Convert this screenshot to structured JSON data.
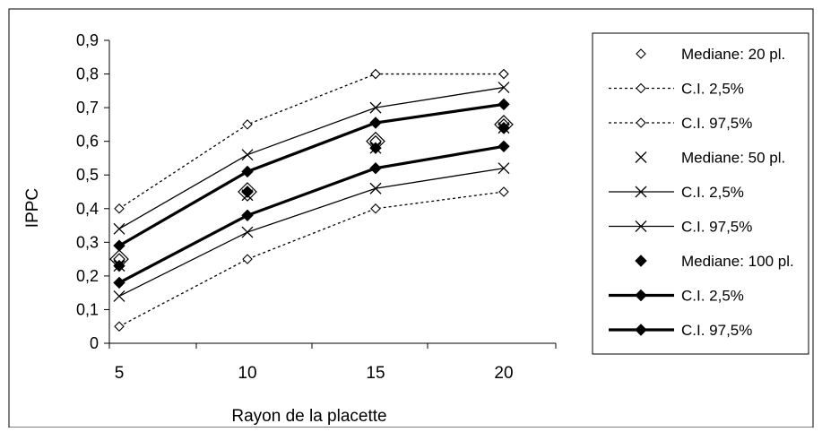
{
  "chart_data": {
    "type": "line",
    "title": "",
    "xlabel": "Rayon de la placette",
    "ylabel": "IPPC",
    "x": [
      5,
      10,
      15,
      20
    ],
    "xlim": [
      5,
      20
    ],
    "ylim": [
      0,
      0.9
    ],
    "xticks": [
      "5",
      "10",
      "15",
      "20"
    ],
    "yticks": [
      "0",
      "0,1",
      "0,2",
      "0,3",
      "0,4",
      "0,5",
      "0,6",
      "0,7",
      "0,8",
      "0,9"
    ],
    "grid": false,
    "legend_position": "right",
    "series": [
      {
        "name": "Mediane: 20 pl.",
        "values": [
          0.25,
          0.45,
          0.6,
          0.65
        ],
        "marker": "diamond-open-large",
        "line": "none"
      },
      {
        "name": "C.I. 2,5%",
        "values": [
          0.05,
          0.25,
          0.4,
          0.45
        ],
        "marker": "diamond-open",
        "line": "dotted"
      },
      {
        "name": "C.I. 97,5%",
        "values": [
          0.4,
          0.65,
          0.8,
          0.8
        ],
        "marker": "diamond-open",
        "line": "dotted"
      },
      {
        "name": "Mediane: 50 pl.",
        "values": [
          0.23,
          0.44,
          0.58,
          0.64
        ],
        "marker": "x",
        "line": "none"
      },
      {
        "name": "C.I. 2,5%",
        "values": [
          0.14,
          0.33,
          0.46,
          0.52
        ],
        "marker": "x",
        "line": "thin"
      },
      {
        "name": "C.I. 97,5%",
        "values": [
          0.34,
          0.56,
          0.7,
          0.76
        ],
        "marker": "x",
        "line": "thin"
      },
      {
        "name": "Mediane: 100 pl.",
        "values": [
          0.23,
          0.45,
          0.58,
          0.64
        ],
        "marker": "diamond-filled",
        "line": "none"
      },
      {
        "name": "C.I. 2,5%",
        "values": [
          0.18,
          0.38,
          0.52,
          0.585
        ],
        "marker": "diamond-filled",
        "line": "thick"
      },
      {
        "name": "C.I. 97,5%",
        "values": [
          0.29,
          0.51,
          0.655,
          0.71
        ],
        "marker": "diamond-filled",
        "line": "thick"
      }
    ]
  }
}
